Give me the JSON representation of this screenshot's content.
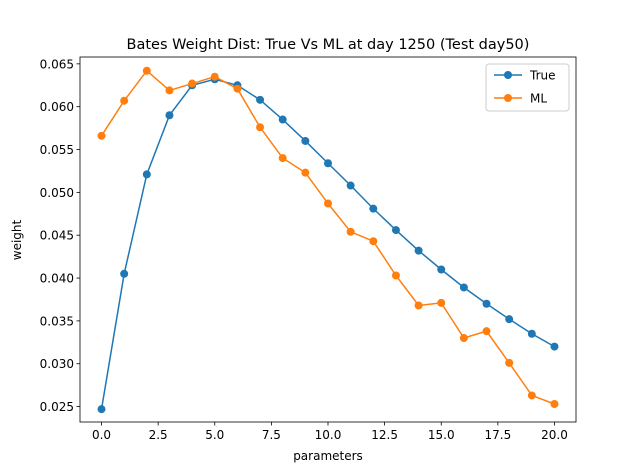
{
  "chart_data": {
    "type": "line",
    "title": "Bates Weight Dist: True Vs ML at day 1250 (Test day50)",
    "xlabel": "parameters",
    "ylabel": "weight",
    "xlim": [
      -0.95,
      20.95
    ],
    "ylim": [
      0.0232,
      0.0658
    ],
    "xticks": [
      0.0,
      2.5,
      5.0,
      7.5,
      10.0,
      12.5,
      15.0,
      17.5,
      20.0
    ],
    "xtick_labels": [
      "0.0",
      "2.5",
      "5.0",
      "7.5",
      "10.0",
      "12.5",
      "15.0",
      "17.5",
      "20.0"
    ],
    "yticks": [
      0.025,
      0.03,
      0.035,
      0.04,
      0.045,
      0.05,
      0.055,
      0.06,
      0.065
    ],
    "ytick_labels": [
      "0.025",
      "0.030",
      "0.035",
      "0.040",
      "0.045",
      "0.050",
      "0.055",
      "0.060",
      "0.065"
    ],
    "grid": false,
    "legend_position": "top-right",
    "x": [
      0,
      1,
      2,
      3,
      4,
      5,
      6,
      7,
      8,
      9,
      10,
      11,
      12,
      13,
      14,
      15,
      16,
      17,
      18,
      19,
      20
    ],
    "series": [
      {
        "name": "True",
        "color": "#1f77b4",
        "values": [
          0.0247,
          0.0405,
          0.0521,
          0.059,
          0.0625,
          0.0632,
          0.0625,
          0.0608,
          0.0585,
          0.056,
          0.0534,
          0.0508,
          0.0481,
          0.0456,
          0.0432,
          0.041,
          0.0389,
          0.037,
          0.0352,
          0.0335,
          0.032
        ]
      },
      {
        "name": "ML",
        "color": "#ff7f0e",
        "values": [
          0.0566,
          0.0607,
          0.0642,
          0.0619,
          0.0627,
          0.0635,
          0.0621,
          0.0576,
          0.054,
          0.0523,
          0.0487,
          0.0454,
          0.0443,
          0.0403,
          0.0368,
          0.0371,
          0.033,
          0.0338,
          0.0301,
          0.0263,
          0.0253
        ]
      }
    ]
  }
}
